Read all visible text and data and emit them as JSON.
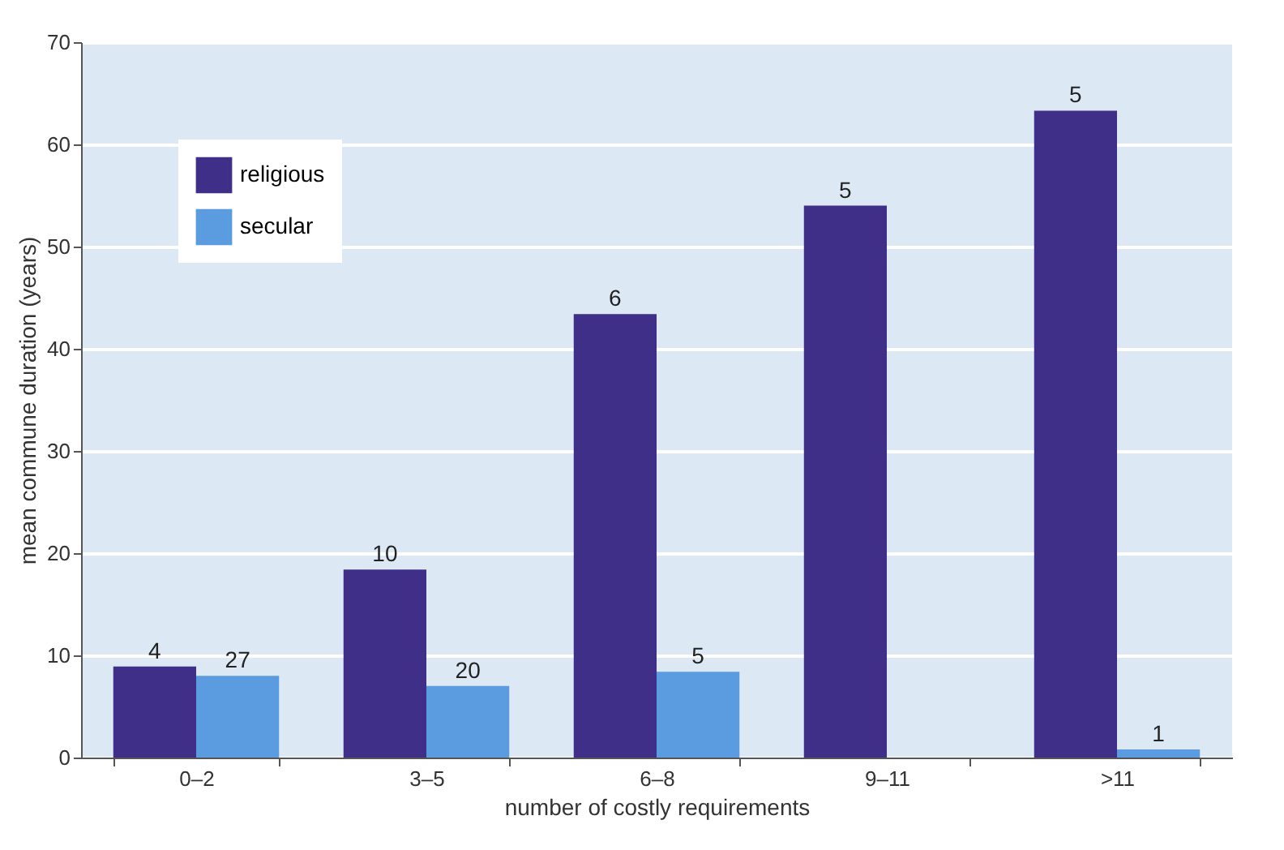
{
  "chart_data": {
    "type": "bar",
    "xlabel": "number of costly requirements",
    "ylabel": "mean commune duration (years)",
    "categories": [
      "0–2",
      "3–5",
      "6–8",
      "9–11",
      ">11"
    ],
    "series": [
      {
        "name": "religious",
        "color": "#3f2f88",
        "values": [
          8.9,
          18.4,
          43.4,
          54.0,
          63.3
        ]
      },
      {
        "name": "secular",
        "color": "#5b9be0",
        "values": [
          8.0,
          7.0,
          8.4,
          null,
          0.8
        ]
      }
    ],
    "annotations": [
      {
        "text": "4",
        "x": "0–2",
        "y": 8.9
      },
      {
        "text": "27",
        "x": "0–2",
        "y": 8.0
      },
      {
        "text": "10",
        "x": "3–5",
        "y": 18.4
      },
      {
        "text": "20",
        "x": "3–5",
        "y": 7.0
      },
      {
        "text": "6",
        "x": "6–8",
        "y": 43.4
      },
      {
        "text": "5",
        "x": "6–8",
        "y": 8.4
      },
      {
        "text": "5",
        "x": "9–11",
        "y": 54.0
      },
      {
        "text": "5",
        "x": ">11",
        "y": 63.3
      },
      {
        "text": "1",
        "x": ">11",
        "y": 0.8
      }
    ],
    "ylim": [
      0,
      70
    ],
    "yticks": [
      0,
      10,
      20,
      30,
      40,
      50,
      60,
      70
    ],
    "grid": "y",
    "legend": "top left"
  }
}
